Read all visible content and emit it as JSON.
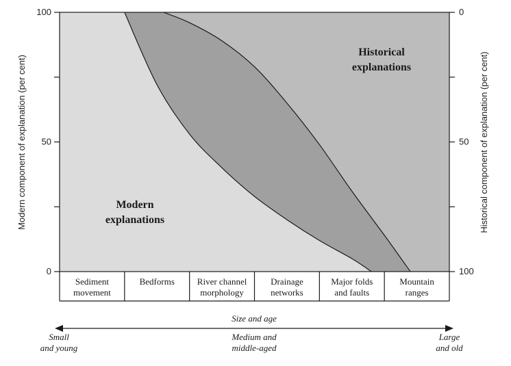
{
  "chart_data": {
    "type": "area",
    "yaxis_left": {
      "label": "Modern component of explanation (per cent)",
      "ticks": [
        "0",
        "50",
        "100"
      ],
      "range": [
        0,
        100
      ]
    },
    "yaxis_right": {
      "label": "Historical component of explanation (per cent)",
      "ticks": [
        "100",
        "50",
        "0"
      ]
    },
    "categories": [
      [
        "Sediment",
        "movement"
      ],
      [
        "Bedforms"
      ],
      [
        "River channel",
        "morphology"
      ],
      [
        "Drainage",
        "networks"
      ],
      [
        "Major folds",
        "and faults"
      ],
      [
        "Mountain",
        "ranges"
      ]
    ],
    "x_range": [
      0,
      6
    ],
    "boundaries": {
      "lower": [
        [
          1.0,
          100
        ],
        [
          1.5,
          72
        ],
        [
          2.0,
          53
        ],
        [
          2.5,
          40
        ],
        [
          3.0,
          29
        ],
        [
          3.5,
          20
        ],
        [
          4.0,
          12
        ],
        [
          4.5,
          5
        ],
        [
          4.8,
          0
        ]
      ],
      "upper": [
        [
          1.6,
          100
        ],
        [
          2.0,
          96
        ],
        [
          2.5,
          89
        ],
        [
          3.0,
          79
        ],
        [
          3.5,
          65
        ],
        [
          4.0,
          49
        ],
        [
          4.5,
          31
        ],
        [
          5.0,
          14
        ],
        [
          5.4,
          0
        ]
      ]
    },
    "regions": {
      "modern": [
        "Modern",
        "explanations"
      ],
      "historical": [
        "Historical",
        "explanations"
      ]
    },
    "colors": {
      "modern": "#dcdcdc",
      "mixed": "#a0a0a0",
      "historical": "#bcbcbc"
    },
    "xaxis": {
      "title": "Size and age",
      "left_end": [
        "Small",
        "and young"
      ],
      "middle": [
        "Medium and",
        "middle-aged"
      ],
      "right_end": [
        "Large",
        "and old"
      ]
    }
  }
}
